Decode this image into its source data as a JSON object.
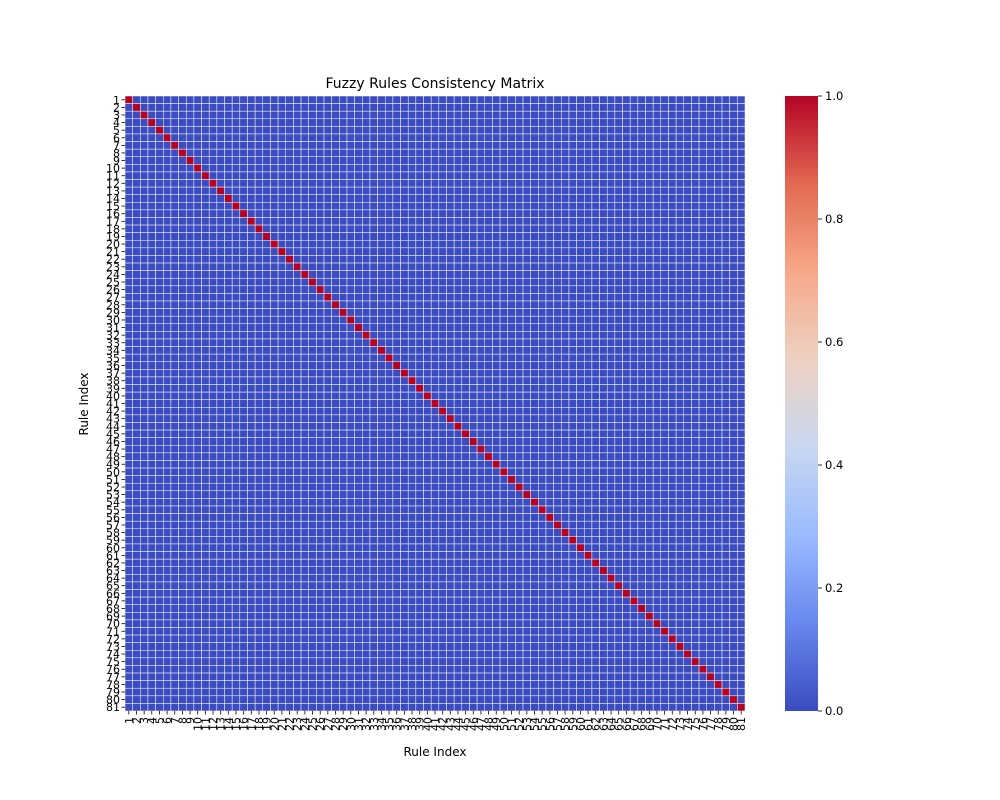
{
  "chart_data": {
    "type": "heatmap",
    "title": "Fuzzy Rules Consistency Matrix",
    "xlabel": "Rule Index",
    "ylabel": "Rule Index",
    "n": 81,
    "x_tick_labels": [
      "1",
      "2",
      "3",
      "4",
      "5",
      "6",
      "7",
      "8",
      "9",
      "10",
      "11",
      "12",
      "13",
      "14",
      "15",
      "16",
      "17",
      "18",
      "19",
      "20",
      "21",
      "22",
      "23",
      "24",
      "25",
      "26",
      "27",
      "28",
      "29",
      "30",
      "31",
      "32",
      "33",
      "34",
      "35",
      "36",
      "37",
      "38",
      "39",
      "40",
      "41",
      "42",
      "43",
      "44",
      "45",
      "46",
      "47",
      "48",
      "49",
      "50",
      "51",
      "52",
      "53",
      "54",
      "55",
      "56",
      "57",
      "58",
      "59",
      "60",
      "61",
      "62",
      "63",
      "64",
      "65",
      "66",
      "67",
      "68",
      "69",
      "70",
      "71",
      "72",
      "73",
      "74",
      "75",
      "76",
      "77",
      "78",
      "79",
      "80",
      "81"
    ],
    "y_tick_labels": [
      "1",
      "2",
      "3",
      "4",
      "5",
      "6",
      "7",
      "8",
      "9",
      "10",
      "11",
      "12",
      "13",
      "14",
      "15",
      "16",
      "17",
      "18",
      "19",
      "20",
      "21",
      "22",
      "23",
      "24",
      "25",
      "26",
      "27",
      "28",
      "29",
      "30",
      "31",
      "32",
      "33",
      "34",
      "35",
      "36",
      "37",
      "38",
      "39",
      "40",
      "41",
      "42",
      "43",
      "44",
      "45",
      "46",
      "47",
      "48",
      "49",
      "50",
      "51",
      "52",
      "53",
      "54",
      "55",
      "56",
      "57",
      "58",
      "59",
      "60",
      "61",
      "62",
      "63",
      "64",
      "65",
      "66",
      "67",
      "68",
      "69",
      "70",
      "71",
      "72",
      "73",
      "74",
      "75",
      "76",
      "77",
      "78",
      "79",
      "80",
      "81"
    ],
    "value_rule": {
      "diagonal": 1.0,
      "off_diagonal": 0.0
    },
    "colorbar": {
      "vmin": 0.0,
      "vmax": 1.0,
      "ticks": [
        "0.0",
        "0.2",
        "0.4",
        "0.6",
        "0.8",
        "1.0"
      ],
      "colormap": "coolwarm",
      "colors": [
        "#3b4cc0",
        "#6788ee",
        "#9abbff",
        "#c9d7f0",
        "#edd1c2",
        "#f7a889",
        "#e26952",
        "#b40426"
      ]
    },
    "cell_separator_color": "#ffffff"
  }
}
